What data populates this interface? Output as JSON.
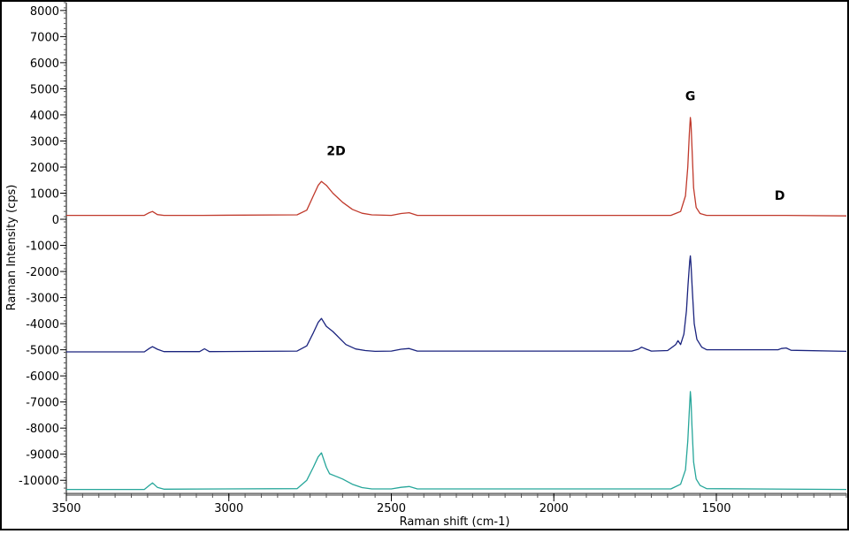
{
  "chart_data": {
    "type": "line",
    "title": "",
    "xlabel": "Raman shift (cm-1)",
    "ylabel": "Raman Intensity (cps)",
    "xlim": [
      3500,
      1100
    ],
    "x_reversed": true,
    "ylim": [
      -10500,
      8300
    ],
    "x_ticks": [
      "3500",
      "3000",
      "2500",
      "2000",
      "1500"
    ],
    "x_tick_values": [
      3500,
      3000,
      2500,
      2000,
      1500
    ],
    "y_ticks": [
      "8000",
      "7000",
      "6000",
      "5000",
      "4000",
      "3000",
      "2000",
      "1000",
      "0",
      "-1000",
      "-2000",
      "-3000",
      "-4000",
      "-5000",
      "-6000",
      "-7000",
      "-8000",
      "-9000",
      "-10000"
    ],
    "y_tick_values": [
      8000,
      7000,
      6000,
      5000,
      4000,
      3000,
      2000,
      1000,
      0,
      -1000,
      -2000,
      -3000,
      -4000,
      -5000,
      -6000,
      -7000,
      -8000,
      -9000,
      -10000
    ],
    "grid": false,
    "legend": "none",
    "annotations": [
      {
        "text": "2D",
        "x": 2670,
        "y": 2450
      },
      {
        "text": "G",
        "x": 1580,
        "y": 4550
      },
      {
        "text": "D",
        "x": 1305,
        "y": 750
      }
    ],
    "series": [
      {
        "color": "#c0392b",
        "x": [
          3500,
          3260,
          3245,
          3235,
          3220,
          3200,
          3080,
          2790,
          2760,
          2740,
          2725,
          2715,
          2700,
          2680,
          2650,
          2620,
          2590,
          2560,
          2500,
          2470,
          2445,
          2420,
          1640,
          1610,
          1595,
          1588,
          1583,
          1580,
          1578,
          1575,
          1570,
          1562,
          1550,
          1530,
          1300,
          1100
        ],
        "values": [
          150,
          150,
          250,
          300,
          180,
          150,
          150,
          170,
          350,
          900,
          1300,
          1450,
          1300,
          1000,
          650,
          380,
          230,
          170,
          150,
          220,
          250,
          150,
          150,
          300,
          900,
          2000,
          3300,
          3900,
          3700,
          2800,
          1200,
          450,
          220,
          150,
          150,
          130
        ]
      },
      {
        "color": "#1a237e",
        "x": [
          3500,
          3260,
          3245,
          3235,
          3220,
          3200,
          3090,
          3075,
          3060,
          2790,
          2760,
          2740,
          2725,
          2715,
          2700,
          2680,
          2660,
          2640,
          2610,
          2580,
          2550,
          2500,
          2470,
          2445,
          2420,
          1760,
          1740,
          1730,
          1715,
          1700,
          1650,
          1625,
          1618,
          1610,
          1600,
          1592,
          1587,
          1582,
          1580,
          1578,
          1574,
          1568,
          1560,
          1545,
          1530,
          1310,
          1300,
          1285,
          1270,
          1100
        ],
        "values": [
          -5080,
          -5080,
          -4950,
          -4880,
          -4980,
          -5070,
          -5070,
          -4960,
          -5070,
          -5050,
          -4850,
          -4350,
          -3950,
          -3800,
          -4100,
          -4300,
          -4550,
          -4800,
          -4970,
          -5030,
          -5060,
          -5050,
          -4980,
          -4950,
          -5050,
          -5050,
          -4980,
          -4900,
          -4980,
          -5050,
          -5030,
          -4800,
          -4650,
          -4800,
          -4400,
          -3500,
          -2500,
          -1600,
          -1400,
          -1700,
          -2700,
          -4000,
          -4600,
          -4900,
          -5000,
          -5000,
          -4950,
          -4930,
          -5020,
          -5060
        ]
      },
      {
        "color": "#26a69a",
        "x": [
          3500,
          3260,
          3245,
          3235,
          3220,
          3200,
          2790,
          2760,
          2740,
          2725,
          2715,
          2700,
          2690,
          2670,
          2650,
          2620,
          2590,
          2560,
          2500,
          2470,
          2445,
          2420,
          1640,
          1610,
          1595,
          1588,
          1583,
          1580,
          1578,
          1575,
          1570,
          1562,
          1550,
          1530,
          1100
        ],
        "values": [
          -10350,
          -10350,
          -10200,
          -10100,
          -10270,
          -10340,
          -10320,
          -10000,
          -9500,
          -9100,
          -8950,
          -9500,
          -9750,
          -9850,
          -9950,
          -10150,
          -10280,
          -10330,
          -10330,
          -10270,
          -10240,
          -10330,
          -10330,
          -10150,
          -9600,
          -8500,
          -7300,
          -6600,
          -6900,
          -7900,
          -9300,
          -9950,
          -10200,
          -10320,
          -10350
        ]
      }
    ]
  }
}
